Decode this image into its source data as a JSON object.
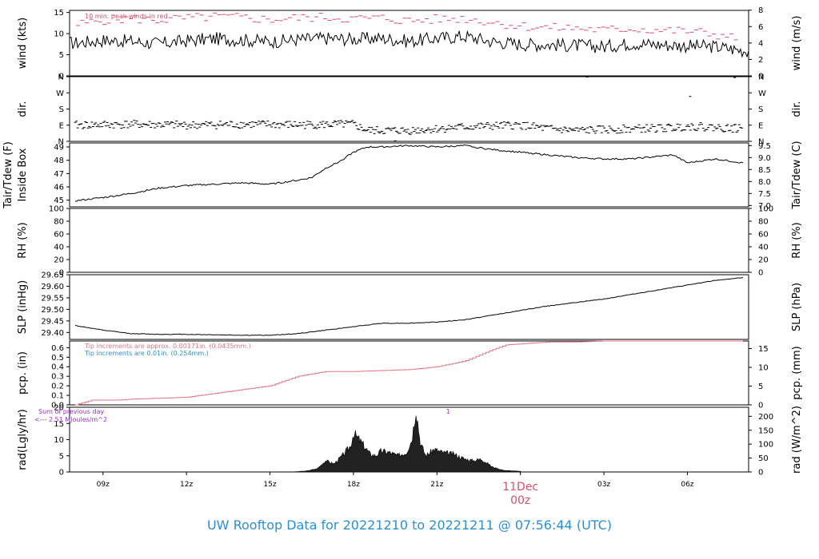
{
  "page": {
    "title": "UW Rooftop Data for 20221210  to  20221211 @ 07:56:44  (UTC)",
    "date_label": "11Dec",
    "date_sublabel": "00z"
  },
  "colors": {
    "title": "#2b8fd6",
    "peak": "#d94f6c",
    "rain": "#e07585",
    "tip_blue": "#2e8fd0",
    "rad_note": "#9a2fd1",
    "line": "#000000"
  },
  "chart_data": [
    {
      "type": "line",
      "panel": "wind",
      "ylabel": "wind (kts)",
      "ylabel_right": "wind (m/s)",
      "ylim": [
        0,
        15.5
      ],
      "yticks": [
        0,
        5,
        10,
        15
      ],
      "right_ticks": [
        0,
        2,
        4,
        6,
        8
      ],
      "right_factor": 1.9438,
      "annotation": "10 min. peak winds in red",
      "series": [
        {
          "x": [
            8,
            9,
            10,
            11,
            12,
            13,
            14,
            15,
            16,
            17,
            18,
            19,
            20,
            21,
            22,
            23,
            24,
            25,
            26,
            27,
            28,
            29,
            30,
            31,
            32
          ],
          "y": [
            7.8,
            8.4,
            8.2,
            7.6,
            8.3,
            8.8,
            8.5,
            8.1,
            8.6,
            8.9,
            8.7,
            8.9,
            8.2,
            8.9,
            9.4,
            8.1,
            7.5,
            7.4,
            7.2,
            6.9,
            7.7,
            7.4,
            7.1,
            6.9,
            6.0
          ]
        },
        {
          "x": [
            8,
            9,
            10,
            11,
            12,
            13,
            14,
            15,
            16,
            17,
            18,
            19,
            20,
            21,
            22,
            23,
            24,
            25,
            26,
            27,
            28,
            29,
            30,
            31,
            32
          ],
          "y": [
            12.0,
            13.2,
            13.5,
            13.2,
            13.6,
            14.0,
            13.8,
            13.3,
            13.7,
            13.9,
            13.5,
            13.7,
            13.0,
            13.4,
            13.6,
            12.7,
            11.8,
            11.4,
            11.3,
            10.8,
            11.2,
            10.8,
            10.6,
            9.9,
            8.4
          ]
        }
      ]
    },
    {
      "type": "scatter",
      "panel": "dir",
      "ylabel": "dir.",
      "ylabel_right": "dir.",
      "ylim": [
        0,
        360
      ],
      "yticks": [
        0,
        90,
        180,
        270,
        360
      ],
      "tick_labels": [
        "N",
        "E",
        "S",
        "W",
        "N"
      ],
      "series": [
        {
          "x": [
            8,
            10,
            12,
            14,
            16,
            18,
            18.5,
            20,
            22,
            24,
            25,
            26,
            28,
            29.5,
            30,
            32
          ],
          "y": [
            90,
            95,
            90,
            95,
            92,
            95,
            60,
            60,
            80,
            90,
            70,
            60,
            70,
            75,
            85,
            70
          ]
        }
      ]
    },
    {
      "type": "line",
      "panel": "tair",
      "ylabel": "Inside Box",
      "ylabel2": "Tair/Tdew (F)",
      "ylabel_right": "Tair/Tdew (C)",
      "ylim": [
        44.5,
        49.3
      ],
      "yticks": [
        45,
        46,
        47,
        48,
        49
      ],
      "right_ticks": [
        7,
        7.5,
        8,
        8.5,
        9,
        9.5
      ],
      "series": [
        {
          "x": [
            8,
            9,
            10,
            11,
            12,
            13,
            14,
            15,
            16,
            16.5,
            17,
            17.5,
            18,
            18.5,
            19,
            20,
            21,
            22,
            23,
            24,
            25,
            26,
            27,
            28,
            29,
            29.5,
            30,
            31,
            32
          ],
          "y": [
            44.95,
            45.2,
            45.5,
            45.9,
            46.1,
            46.2,
            46.3,
            46.2,
            46.5,
            46.7,
            47.4,
            47.9,
            48.6,
            49.0,
            49.0,
            49.1,
            49.0,
            49.1,
            48.8,
            48.6,
            48.4,
            48.2,
            48.1,
            48.1,
            48.3,
            48.4,
            47.8,
            48.1,
            47.8
          ]
        }
      ]
    },
    {
      "type": "line",
      "panel": "rh",
      "ylabel": "RH (%)",
      "ylabel_right": "RH (%)",
      "ylim": [
        0,
        100
      ],
      "yticks": [
        0,
        20,
        40,
        60,
        80,
        100
      ],
      "right_ticks": [
        0,
        20,
        40,
        60,
        80,
        100
      ],
      "series": []
    },
    {
      "type": "line",
      "panel": "slp",
      "ylabel": "SLP (inHg)",
      "ylabel_right": "SLP (hPa)",
      "ylim": [
        29.37,
        29.65
      ],
      "yticks": [
        29.4,
        29.45,
        29.5,
        29.55,
        29.6,
        29.65
      ],
      "right_ticks": [
        996,
        998,
        1000,
        1002,
        1004
      ],
      "right_factor": 33.8639,
      "series": [
        {
          "x": [
            8,
            9,
            10,
            11,
            12,
            13,
            14,
            15,
            16,
            17,
            18,
            19,
            20,
            21,
            22,
            23,
            24,
            25,
            26,
            27,
            28,
            29,
            30,
            31,
            32
          ],
          "y": [
            29.43,
            29.41,
            29.395,
            29.392,
            29.392,
            29.39,
            29.388,
            29.388,
            29.395,
            29.41,
            29.425,
            29.44,
            29.44,
            29.445,
            29.455,
            29.475,
            29.495,
            29.515,
            29.53,
            29.545,
            29.565,
            29.585,
            29.605,
            29.625,
            29.638
          ]
        }
      ]
    },
    {
      "type": "line",
      "panel": "pcp",
      "ylabel": "pcp. (in)",
      "ylabel_right": "pcp. (mm)",
      "ylim": [
        0,
        0.67
      ],
      "yticks": [
        0,
        0.1,
        0.2,
        0.3,
        0.4,
        0.5,
        0.6
      ],
      "right_ticks": [
        0,
        5,
        10,
        15
      ],
      "right_factor": 0.03937,
      "annotation": "Tip increments are approx. 0.00171in. (0.0435mm.)",
      "annotation2": "Tip increments are 0.01in. (0.254mm.)",
      "series": [
        {
          "x": [
            8,
            8.6,
            9.5,
            10,
            12,
            13,
            15,
            16,
            17,
            18,
            20,
            21,
            22,
            23,
            23.5,
            24,
            25,
            26,
            27,
            28,
            30,
            32
          ],
          "y": [
            0,
            0.05,
            0.05,
            0.06,
            0.08,
            0.12,
            0.2,
            0.3,
            0.35,
            0.35,
            0.37,
            0.4,
            0.46,
            0.58,
            0.63,
            0.64,
            0.66,
            0.66,
            0.67,
            0.67,
            0.67,
            0.68
          ]
        }
      ]
    },
    {
      "type": "area",
      "panel": "rad",
      "ylabel": "rad(Lgly/hr)",
      "ylabel_right": "rad (W/m^2)",
      "ylim": [
        0,
        20
      ],
      "yticks": [
        0,
        5,
        10,
        15,
        20
      ],
      "right_ticks": [
        0,
        50,
        100,
        150,
        200
      ],
      "right_factor": 0.086,
      "annotation": "Sum of previous day",
      "annotation2": "<--- 2.51 MJoules/m^2",
      "annotation_mark": "1",
      "series": [
        {
          "x": [
            15.8,
            16.3,
            16.7,
            17.0,
            17.3,
            17.6,
            17.9,
            18.0,
            18.3,
            18.6,
            18.8,
            19.0,
            19.3,
            19.6,
            19.9,
            20.1,
            20.25,
            20.4,
            20.6,
            20.9,
            21.2,
            21.6,
            22.0,
            22.3,
            22.6,
            23.0,
            23.4,
            24.0
          ],
          "y": [
            0,
            0.3,
            1.0,
            3.5,
            2.5,
            5.0,
            8.0,
            12.0,
            9.0,
            5.5,
            5.0,
            6.5,
            6.0,
            5.0,
            6.0,
            10.0,
            20.0,
            9.0,
            5.0,
            7.0,
            6.0,
            5.5,
            4.0,
            3.5,
            4.0,
            1.5,
            0.5,
            0.2
          ]
        }
      ]
    }
  ],
  "xaxis": {
    "xlim": [
      7.8,
      32.2
    ],
    "ticks": [
      9,
      12,
      15,
      18,
      21,
      27,
      30
    ],
    "tick_labels": [
      "09z",
      "12z",
      "15z",
      "18z",
      "21z",
      "03z",
      "06z"
    ]
  }
}
